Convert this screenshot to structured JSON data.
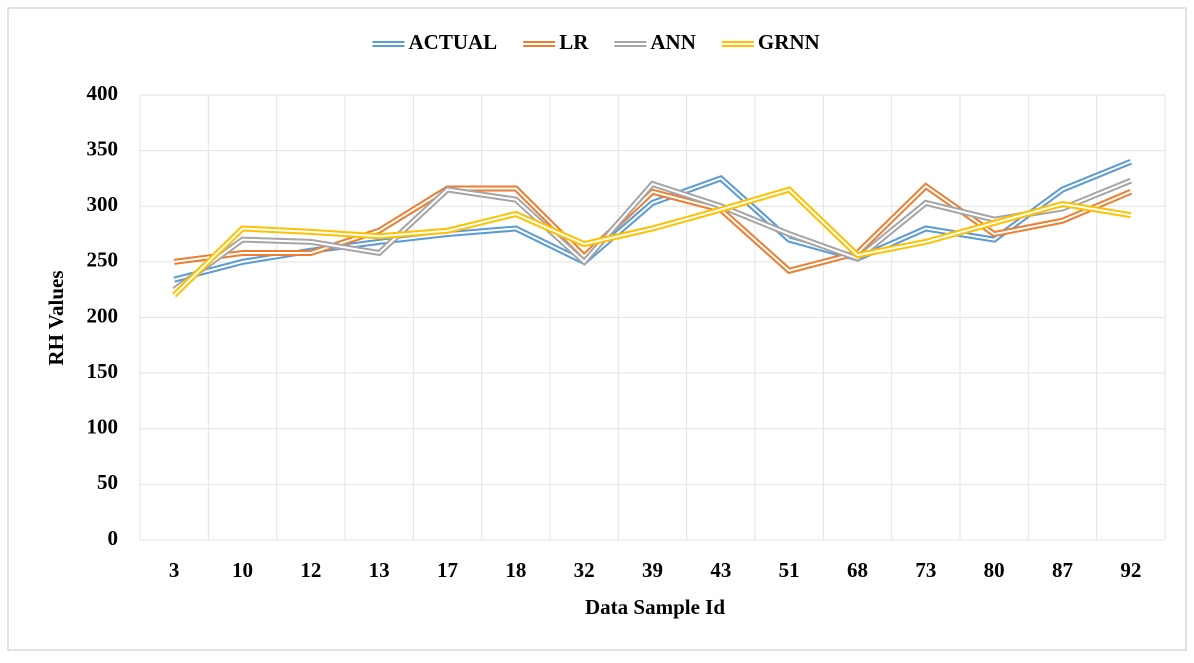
{
  "chart_data": {
    "type": "line",
    "x_label": "Data Sample Id",
    "y_label": "RH Values",
    "categories": [
      "3",
      "10",
      "12",
      "13",
      "17",
      "18",
      "32",
      "39",
      "43",
      "51",
      "68",
      "73",
      "80",
      "87",
      "92"
    ],
    "series": [
      {
        "name": "ACTUAL",
        "color": "#5b9bd5",
        "values": [
          234,
          250,
          260,
          268,
          275,
          280,
          250,
          303,
          325,
          270,
          253,
          280,
          270,
          315,
          340
        ]
      },
      {
        "name": "LR",
        "color": "#ed7d31",
        "values": [
          250,
          258,
          258,
          278,
          316,
          316,
          255,
          313,
          297,
          242,
          258,
          318,
          275,
          287,
          313
        ]
      },
      {
        "name": "ANN",
        "color": "#a5a5a5",
        "values": [
          225,
          270,
          268,
          258,
          315,
          306,
          250,
          320,
          300,
          275,
          253,
          303,
          288,
          298,
          323
        ]
      },
      {
        "name": "GRNN",
        "color": "#ffc000",
        "values": [
          220,
          280,
          277,
          273,
          278,
          293,
          266,
          280,
          297,
          315,
          256,
          268,
          285,
          302,
          292
        ]
      }
    ],
    "ylim": [
      0,
      400
    ],
    "yticks": [
      0,
      50,
      100,
      150,
      200,
      250,
      300,
      350,
      400
    ],
    "grid": true,
    "legend": "top"
  }
}
